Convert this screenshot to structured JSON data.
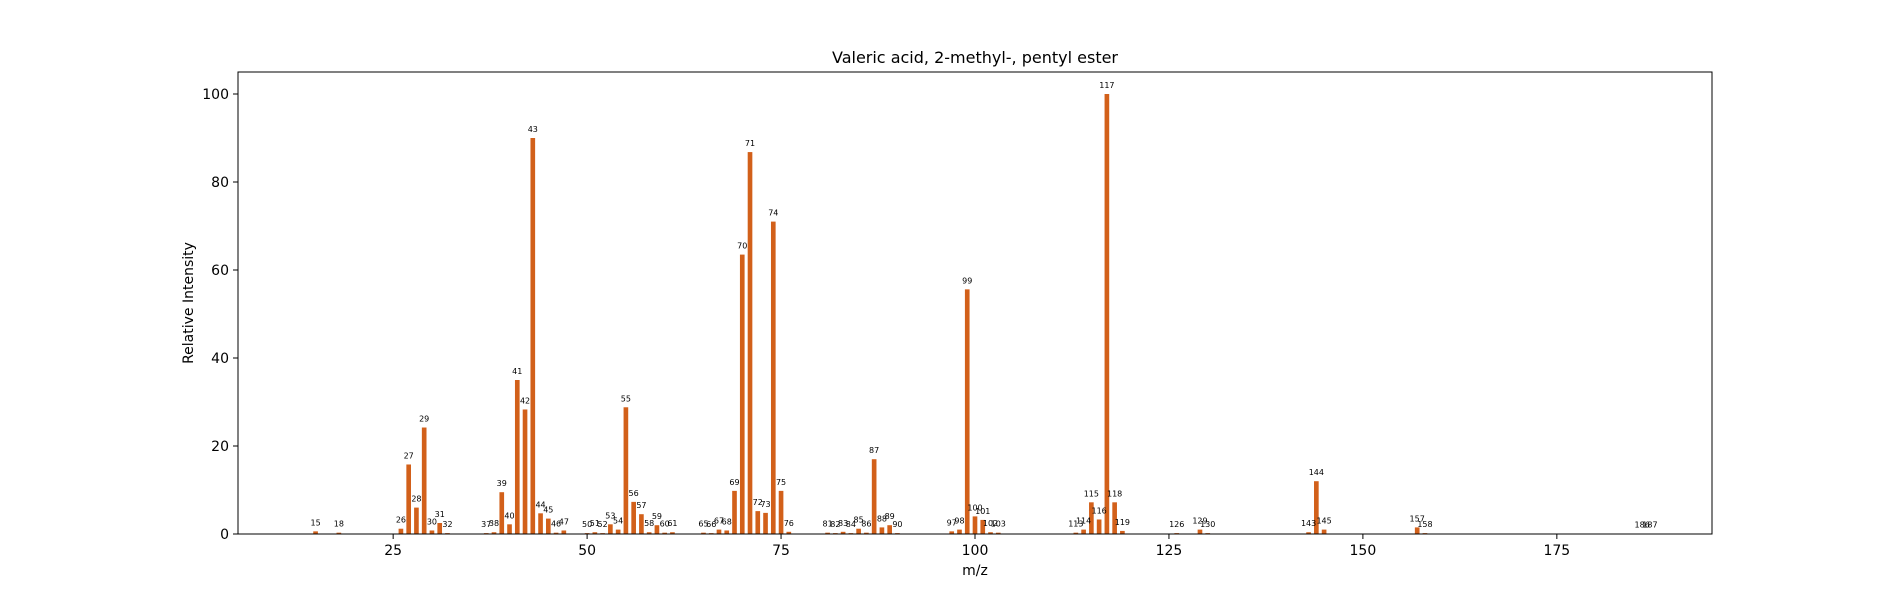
{
  "chart_data": {
    "type": "bar",
    "title": "Valeric acid, 2-methyl-, pentyl ester",
    "xlabel": "m/z",
    "ylabel": "Relative Intensity",
    "xlim": [
      5,
      195
    ],
    "ylim": [
      0,
      105
    ],
    "xticks": [
      25,
      50,
      75,
      100,
      125,
      150,
      175
    ],
    "yticks": [
      0,
      20,
      40,
      60,
      80,
      100
    ],
    "bar_color": "#d2601a",
    "grid": false,
    "bars": [
      {
        "mz": 15,
        "intensity": 0.6
      },
      {
        "mz": 18,
        "intensity": 0.3
      },
      {
        "mz": 26,
        "intensity": 1.2
      },
      {
        "mz": 27,
        "intensity": 15.8
      },
      {
        "mz": 28,
        "intensity": 6.0
      },
      {
        "mz": 29,
        "intensity": 24.2
      },
      {
        "mz": 30,
        "intensity": 0.8
      },
      {
        "mz": 31,
        "intensity": 2.5
      },
      {
        "mz": 32,
        "intensity": 0.2
      },
      {
        "mz": 37,
        "intensity": 0.2
      },
      {
        "mz": 38,
        "intensity": 0.4
      },
      {
        "mz": 39,
        "intensity": 9.5
      },
      {
        "mz": 40,
        "intensity": 2.2
      },
      {
        "mz": 41,
        "intensity": 35.0
      },
      {
        "mz": 42,
        "intensity": 28.3
      },
      {
        "mz": 43,
        "intensity": 90.0
      },
      {
        "mz": 44,
        "intensity": 4.7
      },
      {
        "mz": 45,
        "intensity": 3.5
      },
      {
        "mz": 46,
        "intensity": 0.3
      },
      {
        "mz": 47,
        "intensity": 0.8
      },
      {
        "mz": 50,
        "intensity": 0.2
      },
      {
        "mz": 51,
        "intensity": 0.4
      },
      {
        "mz": 52,
        "intensity": 0.2
      },
      {
        "mz": 53,
        "intensity": 2.2
      },
      {
        "mz": 54,
        "intensity": 1.0
      },
      {
        "mz": 55,
        "intensity": 28.8
      },
      {
        "mz": 56,
        "intensity": 7.3
      },
      {
        "mz": 57,
        "intensity": 4.5
      },
      {
        "mz": 58,
        "intensity": 0.4
      },
      {
        "mz": 59,
        "intensity": 2.0
      },
      {
        "mz": 60,
        "intensity": 0.3
      },
      {
        "mz": 61,
        "intensity": 0.4
      },
      {
        "mz": 65,
        "intensity": 0.3
      },
      {
        "mz": 66,
        "intensity": 0.2
      },
      {
        "mz": 67,
        "intensity": 1.0
      },
      {
        "mz": 68,
        "intensity": 0.8
      },
      {
        "mz": 69,
        "intensity": 9.8
      },
      {
        "mz": 70,
        "intensity": 63.5
      },
      {
        "mz": 71,
        "intensity": 86.8
      },
      {
        "mz": 72,
        "intensity": 5.2
      },
      {
        "mz": 73,
        "intensity": 4.8
      },
      {
        "mz": 74,
        "intensity": 71.0
      },
      {
        "mz": 75,
        "intensity": 9.8
      },
      {
        "mz": 76,
        "intensity": 0.5
      },
      {
        "mz": 81,
        "intensity": 0.3
      },
      {
        "mz": 82,
        "intensity": 0.2
      },
      {
        "mz": 83,
        "intensity": 0.5
      },
      {
        "mz": 84,
        "intensity": 0.2
      },
      {
        "mz": 85,
        "intensity": 1.2
      },
      {
        "mz": 86,
        "intensity": 0.3
      },
      {
        "mz": 87,
        "intensity": 17.0
      },
      {
        "mz": 88,
        "intensity": 1.5
      },
      {
        "mz": 89,
        "intensity": 2.0
      },
      {
        "mz": 90,
        "intensity": 0.2
      },
      {
        "mz": 97,
        "intensity": 0.6
      },
      {
        "mz": 98,
        "intensity": 1.0
      },
      {
        "mz": 99,
        "intensity": 55.6
      },
      {
        "mz": 100,
        "intensity": 4.0
      },
      {
        "mz": 101,
        "intensity": 3.2
      },
      {
        "mz": 102,
        "intensity": 0.4
      },
      {
        "mz": 103,
        "intensity": 0.3
      },
      {
        "mz": 113,
        "intensity": 0.3
      },
      {
        "mz": 114,
        "intensity": 1.0
      },
      {
        "mz": 115,
        "intensity": 7.2
      },
      {
        "mz": 116,
        "intensity": 3.3
      },
      {
        "mz": 117,
        "intensity": 100.0
      },
      {
        "mz": 118,
        "intensity": 7.2
      },
      {
        "mz": 119,
        "intensity": 0.7
      },
      {
        "mz": 126,
        "intensity": 0.2
      },
      {
        "mz": 129,
        "intensity": 1.0
      },
      {
        "mz": 130,
        "intensity": 0.2
      },
      {
        "mz": 143,
        "intensity": 0.4
      },
      {
        "mz": 144,
        "intensity": 12.0
      },
      {
        "mz": 145,
        "intensity": 1.0
      },
      {
        "mz": 157,
        "intensity": 1.5
      },
      {
        "mz": 158,
        "intensity": 0.2
      },
      {
        "mz": 186,
        "intensity": 0.1
      },
      {
        "mz": 187,
        "intensity": 0.1
      }
    ]
  }
}
